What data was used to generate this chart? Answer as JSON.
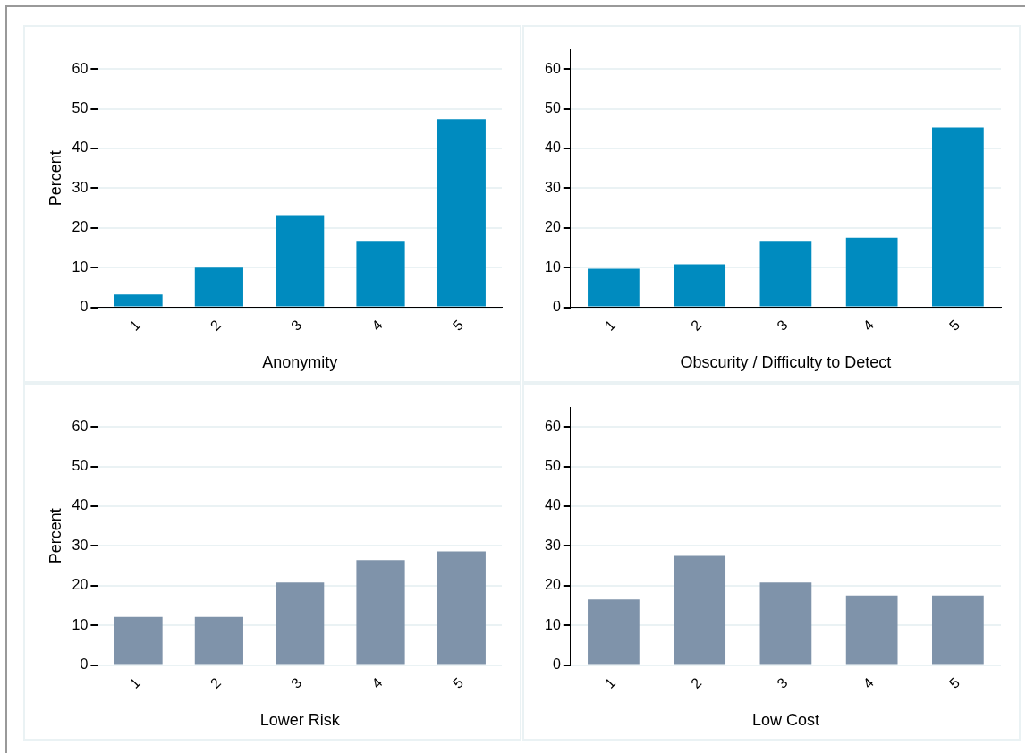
{
  "chart_data": [
    {
      "type": "bar",
      "xlabel": "Anonymity",
      "ylabel": "Percent",
      "categories": [
        "1",
        "2",
        "3",
        "4",
        "5"
      ],
      "values": [
        3.2,
        10,
        23.2,
        16.5,
        47.4
      ],
      "color": "#008bbf",
      "ylim": [
        0,
        65
      ],
      "yticks": [
        0,
        10,
        20,
        30,
        40,
        50,
        60
      ],
      "grid": "y"
    },
    {
      "type": "bar",
      "xlabel": "Obscurity / Difficulty to Detect",
      "categories": [
        "1",
        "2",
        "3",
        "4",
        "5"
      ],
      "values": [
        9.7,
        10.8,
        16.5,
        17.5,
        45.3
      ],
      "color": "#008bbf",
      "ylim": [
        0,
        65
      ],
      "yticks": [
        0,
        10,
        20,
        30,
        40,
        50,
        60
      ],
      "grid": "y"
    },
    {
      "type": "bar",
      "xlabel": "Lower Risk",
      "ylabel": "Percent",
      "categories": [
        "1",
        "2",
        "3",
        "4",
        "5"
      ],
      "values": [
        12.1,
        12.1,
        20.8,
        26.4,
        28.6
      ],
      "color": "#7f93aa",
      "ylim": [
        0,
        65
      ],
      "yticks": [
        0,
        10,
        20,
        30,
        40,
        50,
        60
      ],
      "grid": "y"
    },
    {
      "type": "bar",
      "xlabel": "Low Cost",
      "categories": [
        "1",
        "2",
        "3",
        "4",
        "5"
      ],
      "values": [
        16.5,
        27.5,
        20.8,
        17.5,
        17.5
      ],
      "color": "#7f93aa",
      "ylim": [
        0,
        65
      ],
      "yticks": [
        0,
        10,
        20,
        30,
        40,
        50,
        60
      ],
      "grid": "y"
    }
  ]
}
